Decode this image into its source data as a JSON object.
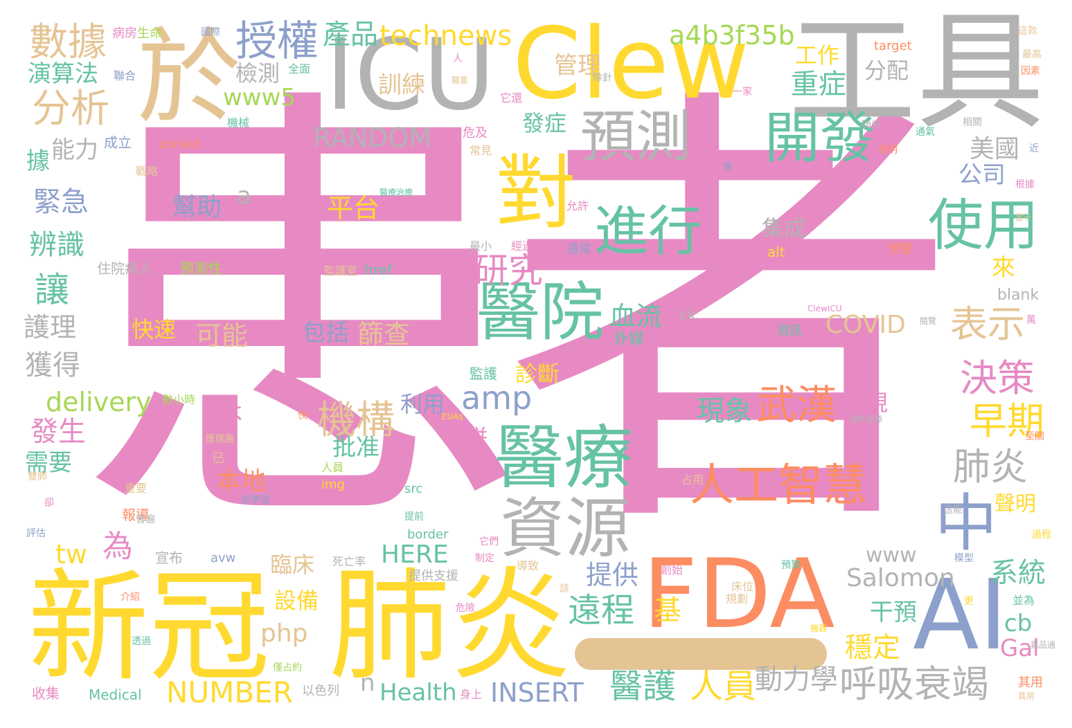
{
  "palette": {
    "pink": "#e78ac3",
    "yellow": "#ffd92f",
    "tan": "#e5c494",
    "gray": "#b3b3b3",
    "green": "#66c2a5",
    "orange": "#fc8d62",
    "blue": "#8da0cb",
    "lime": "#a6d854"
  },
  "words": [
    {
      "text": "患者",
      "color": "pink"
    },
    {
      "text": "新冠",
      "color": "yellow"
    },
    {
      "text": "肺炎",
      "color": "yellow"
    },
    {
      "text": "FDA",
      "color": "orange"
    },
    {
      "text": "工具",
      "color": "gray"
    },
    {
      "text": "Clew",
      "color": "yellow"
    },
    {
      "text": "ICU",
      "color": "gray"
    },
    {
      "text": "於",
      "color": "tan"
    },
    {
      "text": "AI",
      "color": "blue"
    },
    {
      "text": "對",
      "color": "yellow"
    },
    {
      "text": "醫療",
      "color": "green"
    },
    {
      "text": "醫院",
      "color": "green"
    },
    {
      "text": "資源",
      "color": "gray"
    },
    {
      "text": "預測",
      "color": "gray"
    },
    {
      "text": "開發",
      "color": "green"
    },
    {
      "text": "使用",
      "color": "green"
    },
    {
      "text": "進行",
      "color": "green"
    },
    {
      "text": "中",
      "color": "blue"
    },
    {
      "text": "人工智慧",
      "color": "orange"
    },
    {
      "text": "武漢",
      "color": "orange"
    },
    {
      "text": "授權",
      "color": "blue"
    },
    {
      "text": "數據",
      "color": "tan"
    },
    {
      "text": "分析",
      "color": "tan"
    },
    {
      "text": "a4b3f35b",
      "color": "lime"
    },
    {
      "text": "technews",
      "color": "yellow"
    },
    {
      "text": "產品",
      "color": "green"
    },
    {
      "text": "RANDOM",
      "color": "gray"
    },
    {
      "text": "機構",
      "color": "tan"
    },
    {
      "text": "amp",
      "color": "blue"
    },
    {
      "text": "決策",
      "color": "pink"
    },
    {
      "text": "早期",
      "color": "yellow"
    },
    {
      "text": "肺炎",
      "color": "gray"
    },
    {
      "text": "表示",
      "color": "tan"
    },
    {
      "text": "研究",
      "color": "pink"
    },
    {
      "text": "呼吸衰竭",
      "color": "gray"
    },
    {
      "text": "NUMBER",
      "color": "yellow"
    },
    {
      "text": "醫護",
      "color": "green"
    },
    {
      "text": "人員",
      "color": "yellow"
    },
    {
      "text": "動力學",
      "color": "gray"
    },
    {
      "text": "INSERT",
      "color": "blue"
    },
    {
      "text": "Health",
      "color": "green"
    },
    {
      "text": "Salomon",
      "color": "gray"
    },
    {
      "text": "www",
      "color": "gray"
    },
    {
      "text": "系統",
      "color": "green"
    },
    {
      "text": "遠程",
      "color": "green"
    },
    {
      "text": "提供",
      "color": "blue"
    },
    {
      "text": "HERE",
      "color": "green"
    },
    {
      "text": "COVID",
      "color": "tan"
    },
    {
      "text": "重症",
      "color": "green"
    },
    {
      "text": "工作",
      "color": "yellow"
    },
    {
      "text": "分配",
      "color": "gray"
    },
    {
      "text": "管理",
      "color": "tan"
    },
    {
      "text": "訓練",
      "color": "tan"
    },
    {
      "text": "發症",
      "color": "green"
    },
    {
      "text": "檢測",
      "color": "gray"
    },
    {
      "text": "www5",
      "color": "lime"
    },
    {
      "text": "演算法",
      "color": "green"
    },
    {
      "text": "能力",
      "color": "gray"
    },
    {
      "text": "緊急",
      "color": "blue"
    },
    {
      "text": "辨識",
      "color": "green"
    },
    {
      "text": "讓",
      "color": "green"
    },
    {
      "text": "護理",
      "color": "gray"
    },
    {
      "text": "獲得",
      "color": "gray"
    },
    {
      "text": "delivery",
      "color": "lime"
    },
    {
      "text": "發生",
      "color": "pink"
    },
    {
      "text": "需要",
      "color": "green"
    },
    {
      "text": "幫助",
      "color": "blue"
    },
    {
      "text": "平台",
      "color": "yellow"
    },
    {
      "text": "集成",
      "color": "gray"
    },
    {
      "text": "快速",
      "color": "yellow"
    },
    {
      "text": "可能",
      "color": "tan"
    },
    {
      "text": "包括",
      "color": "blue"
    },
    {
      "text": "篩查",
      "color": "tan"
    },
    {
      "text": "血流",
      "color": "green"
    },
    {
      "text": "美國",
      "color": "gray"
    },
    {
      "text": "公司",
      "color": "blue"
    },
    {
      "text": "現象",
      "color": "green"
    },
    {
      "text": "發現",
      "color": "pink"
    },
    {
      "text": "聲明",
      "color": "yellow"
    },
    {
      "text": "干預",
      "color": "green"
    },
    {
      "text": "穩定",
      "color": "yellow"
    },
    {
      "text": "基",
      "color": "yellow"
    },
    {
      "text": "批准",
      "color": "green"
    },
    {
      "text": "本地",
      "color": "orange"
    },
    {
      "text": "利用",
      "color": "blue"
    },
    {
      "text": "臨床",
      "color": "tan"
    },
    {
      "text": "設備",
      "color": "yellow"
    },
    {
      "text": "php",
      "color": "tan"
    },
    {
      "text": "為",
      "color": "pink"
    },
    {
      "text": "tw",
      "color": "yellow"
    },
    {
      "text": "a",
      "color": "gray"
    },
    {
      "text": "不",
      "color": "pink"
    },
    {
      "text": "據",
      "color": "green"
    },
    {
      "text": "來",
      "color": "yellow"
    },
    {
      "text": "cb",
      "color": "green"
    },
    {
      "text": "Gal",
      "color": "pink"
    },
    {
      "text": "n",
      "color": "gray"
    },
    {
      "text": "診斷",
      "color": "yellow"
    },
    {
      "text": "併",
      "color": "pink"
    },
    {
      "text": "外媒",
      "color": "green"
    },
    {
      "text": "blank",
      "color": "gray"
    },
    {
      "text": "ck",
      "color": "gray"
    },
    {
      "text": "alt",
      "color": "yellow"
    },
    {
      "text": "target",
      "color": "orange"
    },
    {
      "text": "href",
      "color": "green"
    },
    {
      "text": "img",
      "color": "yellow"
    },
    {
      "text": "src",
      "color": "green"
    },
    {
      "text": "border",
      "color": "green"
    },
    {
      "text": "avw",
      "color": "blue"
    },
    {
      "text": "Medical",
      "color": "green"
    },
    {
      "text": "zoneid",
      "color": "orange"
    },
    {
      "text": "以色列",
      "color": "gray"
    },
    {
      "text": "宣布",
      "color": "gray"
    },
    {
      "text": "預測性",
      "color": "lime"
    },
    {
      "text": "住院病人",
      "color": "gray"
    },
    {
      "text": "成立",
      "color": "blue"
    },
    {
      "text": "生命",
      "color": "lime"
    },
    {
      "text": "病房",
      "color": "pink"
    },
    {
      "text": "報導",
      "color": "orange"
    },
    {
      "text": "收集",
      "color": "pink"
    },
    {
      "text": "資訊",
      "color": "green"
    },
    {
      "text": "預警",
      "color": "orange"
    },
    {
      "text": "其用",
      "color": "orange"
    },
    {
      "text": "身上",
      "color": "pink"
    },
    {
      "text": "死亡率",
      "color": "gray"
    },
    {
      "text": "監護室",
      "color": "tan"
    },
    {
      "text": "年",
      "color": "pink"
    },
    {
      "text": "監護",
      "color": "green"
    },
    {
      "text": "危及",
      "color": "pink"
    },
    {
      "text": "常見",
      "color": "tan"
    },
    {
      "text": "戰略",
      "color": "tan"
    },
    {
      "text": "部門",
      "color": "pink"
    },
    {
      "text": "機械",
      "color": "green"
    },
    {
      "text": "住肺炎",
      "color": "pink"
    },
    {
      "text": "聯合",
      "color": "blue"
    },
    {
      "text": "全面",
      "color": "green"
    },
    {
      "text": "國際",
      "color": "blue"
    },
    {
      "text": "人",
      "color": "pink"
    },
    {
      "text": "它還",
      "color": "pink"
    },
    {
      "text": "除針",
      "color": "gray"
    },
    {
      "text": "一家",
      "color": "pink"
    },
    {
      "text": "允許",
      "color": "pink"
    },
    {
      "text": "通常",
      "color": "blue"
    },
    {
      "text": "最小",
      "color": "gray"
    },
    {
      "text": "經過",
      "color": "pink"
    },
    {
      "text": "提供支援",
      "color": "gray"
    },
    {
      "text": "導致",
      "color": "tan"
    },
    {
      "text": "創始",
      "color": "pink"
    },
    {
      "text": "床位",
      "color": "tan"
    },
    {
      "text": "規劃",
      "color": "tan"
    },
    {
      "text": "並為",
      "color": "green"
    },
    {
      "text": "占用",
      "color": "tan"
    },
    {
      "text": "數小時",
      "color": "lime"
    },
    {
      "text": "快",
      "color": "orange"
    },
    {
      "text": "高學習",
      "color": "blue"
    },
    {
      "text": "已",
      "color": "tan"
    },
    {
      "text": "人員",
      "color": "lime"
    },
    {
      "text": "重要",
      "color": "tan"
    },
    {
      "text": "評估",
      "color": "blue"
    },
    {
      "text": "透過",
      "color": "green"
    },
    {
      "text": "介紹",
      "color": "orange"
    },
    {
      "text": "危險",
      "color": "pink"
    },
    {
      "text": "最高",
      "color": "tan"
    },
    {
      "text": "因素",
      "color": "orange"
    },
    {
      "text": "這款",
      "color": "tan"
    },
    {
      "text": "根據",
      "color": "pink"
    },
    {
      "text": "相關",
      "color": "gray"
    },
    {
      "text": "通氣",
      "color": "green"
    },
    {
      "text": "表明",
      "color": "orange"
    },
    {
      "text": "過程",
      "color": "yellow"
    },
    {
      "text": "至關",
      "color": "orange"
    },
    {
      "text": "模型",
      "color": "blue"
    },
    {
      "text": "更",
      "color": "yellow"
    },
    {
      "text": "萬",
      "color": "pink"
    },
    {
      "text": "預算",
      "color": "green"
    },
    {
      "text": "這能",
      "color": "gray"
    },
    {
      "text": "其用",
      "color": "tan"
    },
    {
      "text": "僅占約",
      "color": "lime"
    },
    {
      "text": "該",
      "color": "tan"
    },
    {
      "text": "護理團",
      "color": "tan"
    },
    {
      "text": "它們",
      "color": "pink"
    },
    {
      "text": "制定",
      "color": "pink"
    },
    {
      "text": "提前",
      "color": "green"
    },
    {
      "text": "會",
      "color": "blue"
    },
    {
      "text": "近",
      "color": "blue"
    },
    {
      "text": "額外",
      "color": "gray"
    },
    {
      "text": "卻",
      "color": "pink"
    },
    {
      "text": "雙肺",
      "color": "tan"
    },
    {
      "text": "普遍",
      "color": "gray"
    },
    {
      "text": "ClewICU",
      "color": "pink"
    },
    {
      "text": "EUAs",
      "color": "yellow"
    },
    {
      "text": "消耗資源",
      "color": "gray"
    },
    {
      "text": "機器",
      "color": "yellow"
    },
    {
      "text": "嘉品通",
      "color": "gray"
    },
    {
      "text": "當于",
      "color": "tan"
    },
    {
      "text": "醫療治療",
      "color": "green"
    },
    {
      "text": "醫重",
      "color": "tan"
    },
    {
      "text": "這對",
      "color": "pink"
    },
    {
      "text": "閱覽",
      "color": "gray"
    }
  ]
}
